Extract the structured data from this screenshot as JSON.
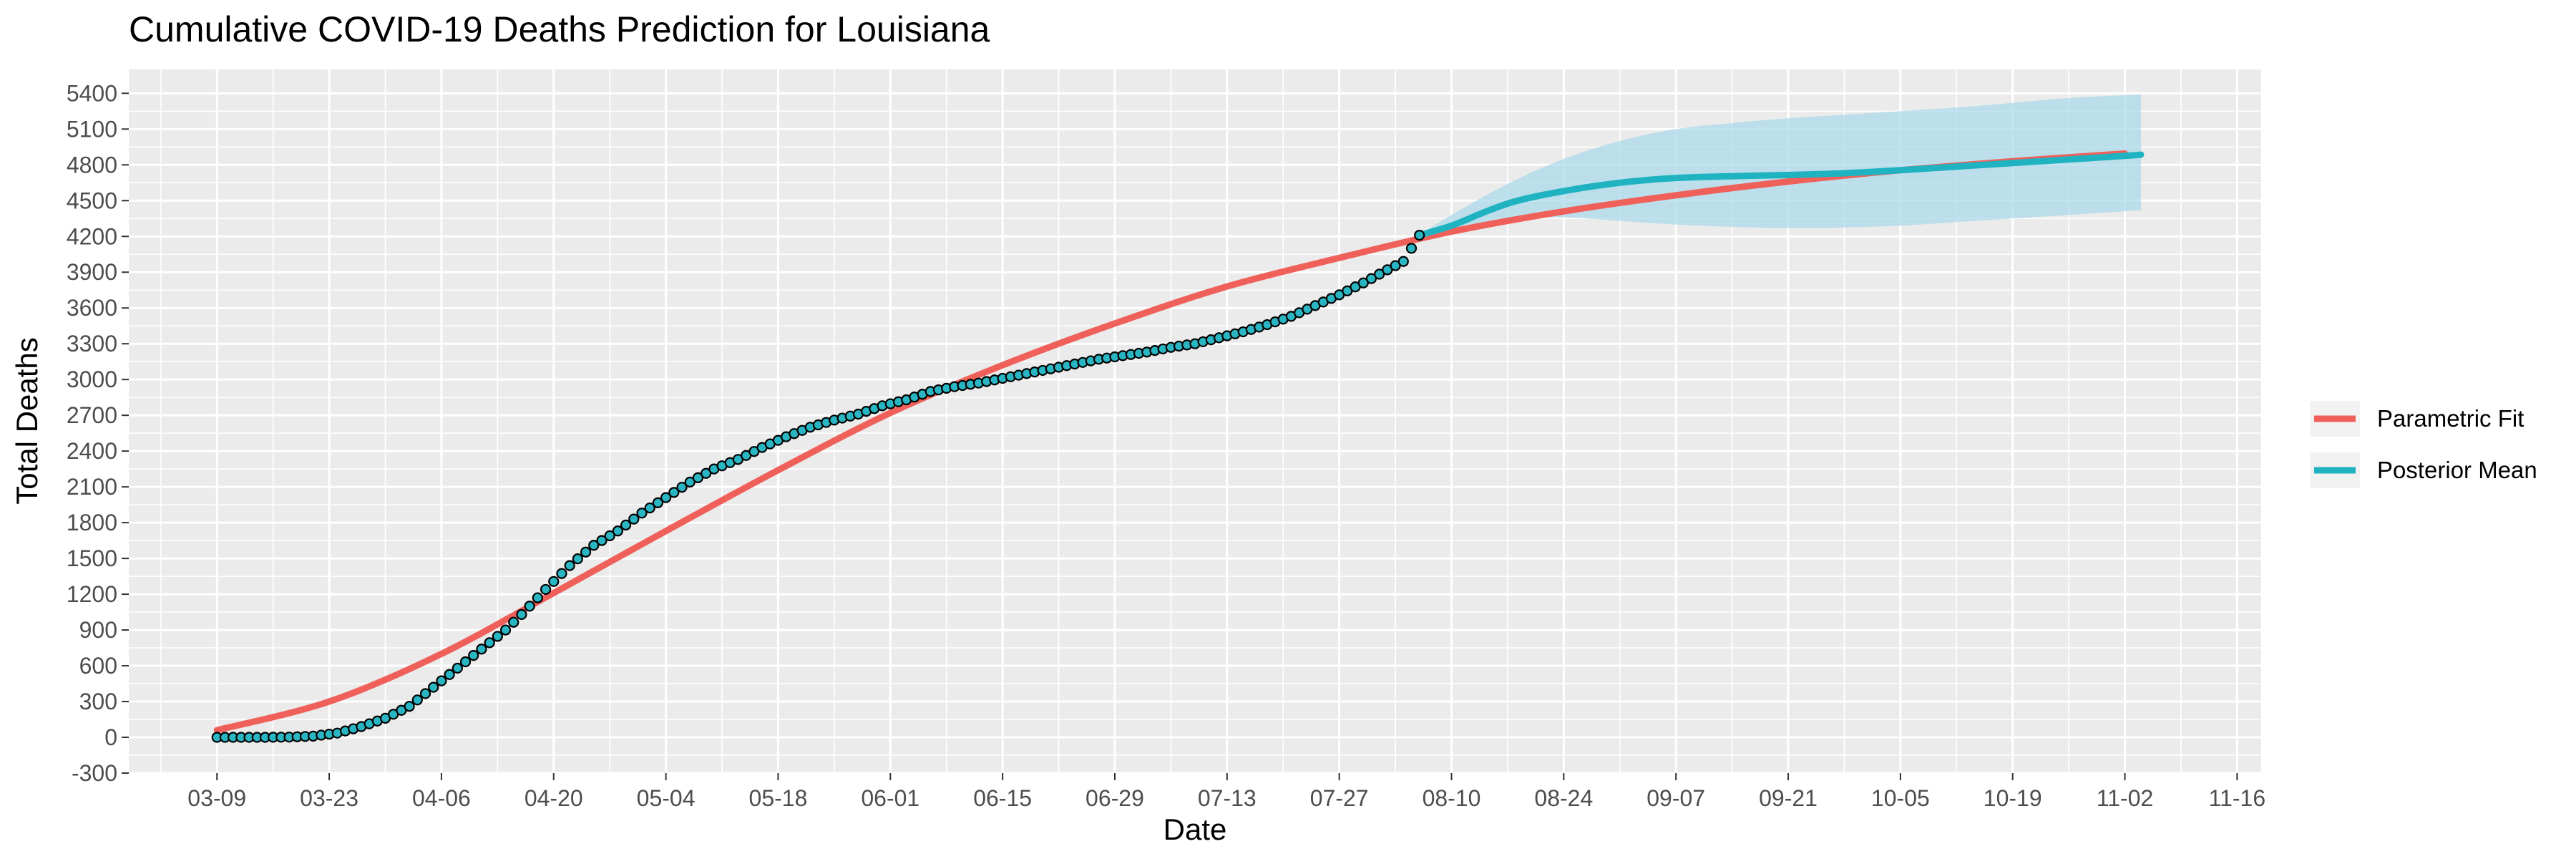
{
  "chart_data": {
    "type": "line",
    "title": "Cumulative COVID-19 Deaths Prediction for Louisiana",
    "xlabel": "Date",
    "ylabel": "Total Deaths",
    "x_ticks": [
      "03-09",
      "03-23",
      "04-06",
      "04-20",
      "05-04",
      "05-18",
      "06-01",
      "06-15",
      "06-29",
      "07-13",
      "07-27",
      "08-10",
      "08-24",
      "09-07",
      "09-21",
      "10-05",
      "10-19",
      "11-02",
      "11-16"
    ],
    "y_ticks": [
      -300,
      0,
      300,
      600,
      900,
      1200,
      1500,
      1800,
      2100,
      2400,
      2700,
      3000,
      3300,
      3600,
      3900,
      4200,
      4500,
      4800,
      5100,
      5400
    ],
    "ylim": [
      -300,
      5600
    ],
    "xlim": [
      "2020-02-27",
      "2020-11-19"
    ],
    "grid": true,
    "legend_position": "right",
    "colors": {
      "panel_background": "#ebebeb",
      "grid": "#ffffff",
      "parametric_fit": "#f0605a",
      "posterior_mean": "#1fb3c2",
      "credible_band": "#a7d8ea",
      "observed_fill": "#2ab5c2",
      "observed_stroke": "#000000"
    },
    "series": [
      {
        "name": "Parametric Fit",
        "kind": "line",
        "points": [
          [
            "2020-03-09",
            60
          ],
          [
            "2020-03-23",
            300
          ],
          [
            "2020-04-06",
            700
          ],
          [
            "2020-04-20",
            1210
          ],
          [
            "2020-05-04",
            1730
          ],
          [
            "2020-05-18",
            2240
          ],
          [
            "2020-06-01",
            2720
          ],
          [
            "2020-06-15",
            3120
          ],
          [
            "2020-06-29",
            3470
          ],
          [
            "2020-07-13",
            3780
          ],
          [
            "2020-07-27",
            4020
          ],
          [
            "2020-08-10",
            4240
          ],
          [
            "2020-08-24",
            4410
          ],
          [
            "2020-09-07",
            4545
          ],
          [
            "2020-09-21",
            4660
          ],
          [
            "2020-10-05",
            4755
          ],
          [
            "2020-10-19",
            4830
          ],
          [
            "2020-11-02",
            4895
          ]
        ]
      },
      {
        "name": "Posterior Mean",
        "kind": "line",
        "points": [
          [
            "2020-08-06",
            4210
          ],
          [
            "2020-08-10",
            4290
          ],
          [
            "2020-08-14",
            4400
          ],
          [
            "2020-08-18",
            4495
          ],
          [
            "2020-08-24",
            4580
          ],
          [
            "2020-08-31",
            4650
          ],
          [
            "2020-09-07",
            4690
          ],
          [
            "2020-09-14",
            4705
          ],
          [
            "2020-09-21",
            4715
          ],
          [
            "2020-09-28",
            4730
          ],
          [
            "2020-10-05",
            4755
          ],
          [
            "2020-10-12",
            4785
          ],
          [
            "2020-10-19",
            4815
          ],
          [
            "2020-10-26",
            4845
          ],
          [
            "2020-11-02",
            4875
          ],
          [
            "2020-11-04",
            4885
          ]
        ]
      },
      {
        "name": "Posterior Interval",
        "kind": "band",
        "upper": [
          [
            "2020-08-06",
            4210
          ],
          [
            "2020-08-10",
            4380
          ],
          [
            "2020-08-17",
            4640
          ],
          [
            "2020-08-24",
            4850
          ],
          [
            "2020-08-31",
            5000
          ],
          [
            "2020-09-07",
            5100
          ],
          [
            "2020-09-14",
            5150
          ],
          [
            "2020-09-21",
            5190
          ],
          [
            "2020-09-28",
            5220
          ],
          [
            "2020-10-05",
            5250
          ],
          [
            "2020-10-12",
            5280
          ],
          [
            "2020-10-19",
            5320
          ],
          [
            "2020-10-26",
            5360
          ],
          [
            "2020-11-04",
            5390
          ]
        ],
        "lower": [
          [
            "2020-08-06",
            4210
          ],
          [
            "2020-08-10",
            4250
          ],
          [
            "2020-08-17",
            4340
          ],
          [
            "2020-08-24",
            4360
          ],
          [
            "2020-08-31",
            4330
          ],
          [
            "2020-09-07",
            4300
          ],
          [
            "2020-09-14",
            4280
          ],
          [
            "2020-09-21",
            4270
          ],
          [
            "2020-09-28",
            4275
          ],
          [
            "2020-10-05",
            4290
          ],
          [
            "2020-10-12",
            4320
          ],
          [
            "2020-10-19",
            4350
          ],
          [
            "2020-10-26",
            4380
          ],
          [
            "2020-11-04",
            4420
          ]
        ]
      },
      {
        "name": "Observed",
        "kind": "scatter",
        "points": [
          [
            "2020-03-09",
            0
          ],
          [
            "2020-03-12",
            0
          ],
          [
            "2020-03-15",
            0
          ],
          [
            "2020-03-18",
            2
          ],
          [
            "2020-03-21",
            10
          ],
          [
            "2020-03-24",
            35
          ],
          [
            "2020-03-27",
            90
          ],
          [
            "2020-03-30",
            160
          ],
          [
            "2020-04-02",
            260
          ],
          [
            "2020-04-05",
            420
          ],
          [
            "2020-04-08",
            580
          ],
          [
            "2020-04-11",
            740
          ],
          [
            "2020-04-14",
            900
          ],
          [
            "2020-04-16",
            1030
          ],
          [
            "2020-04-19",
            1240
          ],
          [
            "2020-04-22",
            1440
          ],
          [
            "2020-04-25",
            1610
          ],
          [
            "2020-04-28",
            1730
          ],
          [
            "2020-05-01",
            1880
          ],
          [
            "2020-05-04",
            2010
          ],
          [
            "2020-05-07",
            2140
          ],
          [
            "2020-05-10",
            2250
          ],
          [
            "2020-05-13",
            2330
          ],
          [
            "2020-05-16",
            2430
          ],
          [
            "2020-05-19",
            2520
          ],
          [
            "2020-05-22",
            2600
          ],
          [
            "2020-05-25",
            2660
          ],
          [
            "2020-05-28",
            2710
          ],
          [
            "2020-05-31",
            2780
          ],
          [
            "2020-06-03",
            2830
          ],
          [
            "2020-06-06",
            2900
          ],
          [
            "2020-06-09",
            2940
          ],
          [
            "2020-06-12",
            2970
          ],
          [
            "2020-06-15",
            3010
          ],
          [
            "2020-06-18",
            3050
          ],
          [
            "2020-06-21",
            3090
          ],
          [
            "2020-06-24",
            3130
          ],
          [
            "2020-06-27",
            3170
          ],
          [
            "2020-06-30",
            3200
          ],
          [
            "2020-07-03",
            3230
          ],
          [
            "2020-07-06",
            3270
          ],
          [
            "2020-07-09",
            3300
          ],
          [
            "2020-07-12",
            3350
          ],
          [
            "2020-07-15",
            3400
          ],
          [
            "2020-07-18",
            3460
          ],
          [
            "2020-07-21",
            3530
          ],
          [
            "2020-07-24",
            3620
          ],
          [
            "2020-07-27",
            3710
          ],
          [
            "2020-07-30",
            3810
          ],
          [
            "2020-08-02",
            3920
          ],
          [
            "2020-08-04",
            3990
          ],
          [
            "2020-08-06",
            4210
          ]
        ]
      }
    ]
  }
}
